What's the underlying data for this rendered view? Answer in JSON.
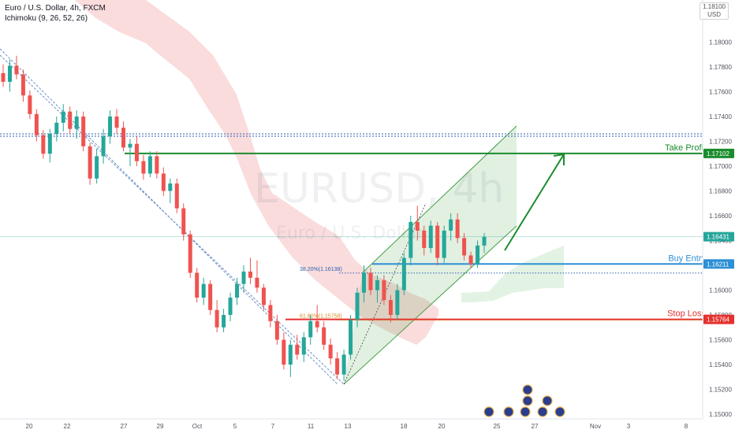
{
  "header": {
    "title": "Euro / U.S. Dollar, 4h, FXCM",
    "indicator": "Ichimoku (9, 26, 52, 26)"
  },
  "watermark": {
    "symbol": "EURUSD, 4h",
    "name": "Euro / U.S. Dollar"
  },
  "currency_box": {
    "top": "1.18100",
    "unit": "USD"
  },
  "colors": {
    "up": "#26a69a",
    "down": "#ef5350",
    "cloud": "#f9d6d7",
    "channel": "#43a047",
    "take_profit": "#1b8c2e",
    "buy": "#2d8fd5",
    "stop": "#e5312f"
  },
  "levels": {
    "take_profit": {
      "label": "Take Profit",
      "price": "1.17102",
      "value": 1.17102
    },
    "buy_entry": {
      "label": "Buy Entry",
      "price": "1.16211",
      "value": 1.16211
    },
    "stop_loss": {
      "label": "Stop Loss",
      "price": "1.15764",
      "value": 1.15764
    },
    "current": {
      "price": "1.16431",
      "value": 1.16431
    }
  },
  "fib": [
    {
      "label": "38.20%(1.16138)",
      "value": 1.16138
    },
    {
      "label": "61.80%(1.15758)",
      "value": 1.15758
    }
  ],
  "chart_data": {
    "type": "candlestick",
    "title": "Euro / U.S. Dollar, 4h, FXCM",
    "ylim": [
      1.15,
      1.182
    ],
    "y_ticks": [
      {
        "value": 1.18,
        "label": "1.18000"
      },
      {
        "value": 1.178,
        "label": "1.17800"
      },
      {
        "value": 1.176,
        "label": "1.17600"
      },
      {
        "value": 1.174,
        "label": "1.17400"
      },
      {
        "value": 1.172,
        "label": "1.17200"
      },
      {
        "value": 1.17,
        "label": "1.17000"
      },
      {
        "value": 1.168,
        "label": "1.16800"
      },
      {
        "value": 1.166,
        "label": "1.16600"
      },
      {
        "value": 1.164,
        "label": "1.16400"
      },
      {
        "value": 1.162,
        "label": "1.16200"
      },
      {
        "value": 1.16,
        "label": "1.16000"
      },
      {
        "value": 1.158,
        "label": "1.15800"
      },
      {
        "value": 1.156,
        "label": "1.15600"
      },
      {
        "value": 1.154,
        "label": "1.15400"
      },
      {
        "value": 1.152,
        "label": "1.15200"
      },
      {
        "value": 1.15,
        "label": "1.15000"
      }
    ],
    "x_ticks": [
      "20",
      "22",
      "27",
      "29",
      "Oct",
      "5",
      "7",
      "11",
      "13",
      "18",
      "20",
      "25",
      "27",
      "Nov",
      "3",
      "8"
    ],
    "candles": [
      [
        1.1775,
        1.1782,
        1.1764,
        1.1768
      ],
      [
        1.1768,
        1.1786,
        1.176,
        1.1781
      ],
      [
        1.1781,
        1.1789,
        1.177,
        1.1774
      ],
      [
        1.1774,
        1.1778,
        1.1752,
        1.1757
      ],
      [
        1.1757,
        1.1761,
        1.1738,
        1.1742
      ],
      [
        1.1742,
        1.1746,
        1.172,
        1.1725
      ],
      [
        1.1725,
        1.1729,
        1.1706,
        1.171
      ],
      [
        1.171,
        1.173,
        1.1703,
        1.1726
      ],
      [
        1.1726,
        1.174,
        1.172,
        1.1735
      ],
      [
        1.1735,
        1.175,
        1.1728,
        1.1744
      ],
      [
        1.1744,
        1.1748,
        1.1726,
        1.173
      ],
      [
        1.173,
        1.1745,
        1.1722,
        1.174
      ],
      [
        1.174,
        1.1744,
        1.1712,
        1.1716
      ],
      [
        1.1716,
        1.1719,
        1.1685,
        1.169
      ],
      [
        1.169,
        1.1714,
        1.1686,
        1.1708
      ],
      [
        1.1708,
        1.173,
        1.1702,
        1.1724
      ],
      [
        1.1724,
        1.1745,
        1.1718,
        1.174
      ],
      [
        1.174,
        1.1746,
        1.1726,
        1.1731
      ],
      [
        1.1731,
        1.1736,
        1.1712,
        1.1715
      ],
      [
        1.1715,
        1.1722,
        1.17,
        1.1718
      ],
      [
        1.1718,
        1.1724,
        1.17,
        1.1704
      ],
      [
        1.1704,
        1.1709,
        1.1689,
        1.1694
      ],
      [
        1.1694,
        1.1712,
        1.1691,
        1.1708
      ],
      [
        1.1708,
        1.1712,
        1.169,
        1.1694
      ],
      [
        1.1694,
        1.1699,
        1.1676,
        1.168
      ],
      [
        1.168,
        1.169,
        1.167,
        1.1686
      ],
      [
        1.1686,
        1.169,
        1.1662,
        1.1666
      ],
      [
        1.1666,
        1.167,
        1.164,
        1.1645
      ],
      [
        1.1645,
        1.1648,
        1.161,
        1.1614
      ],
      [
        1.1614,
        1.1618,
        1.159,
        1.1594
      ],
      [
        1.1594,
        1.161,
        1.1588,
        1.1605
      ],
      [
        1.1605,
        1.1608,
        1.158,
        1.1584
      ],
      [
        1.1584,
        1.1592,
        1.1566,
        1.157
      ],
      [
        1.157,
        1.1585,
        1.1566,
        1.158
      ],
      [
        1.158,
        1.1598,
        1.1575,
        1.1594
      ],
      [
        1.1594,
        1.161,
        1.1588,
        1.1605
      ],
      [
        1.1605,
        1.162,
        1.1598,
        1.1615
      ],
      [
        1.1615,
        1.1626,
        1.1605,
        1.161
      ],
      [
        1.161,
        1.1624,
        1.1598,
        1.1602
      ],
      [
        1.1602,
        1.1605,
        1.1584,
        1.1588
      ],
      [
        1.1588,
        1.1592,
        1.157,
        1.1575
      ],
      [
        1.1575,
        1.158,
        1.1556,
        1.156
      ],
      [
        1.156,
        1.1566,
        1.1536,
        1.154
      ],
      [
        1.154,
        1.156,
        1.153,
        1.1556
      ],
      [
        1.1556,
        1.1564,
        1.1544,
        1.1548
      ],
      [
        1.1548,
        1.1566,
        1.1542,
        1.1562
      ],
      [
        1.1562,
        1.158,
        1.1556,
        1.1575
      ],
      [
        1.1575,
        1.1588,
        1.1566,
        1.157
      ],
      [
        1.157,
        1.1575,
        1.1552,
        1.1556
      ],
      [
        1.1556,
        1.1561,
        1.154,
        1.1545
      ],
      [
        1.1545,
        1.155,
        1.1528,
        1.1532
      ],
      [
        1.1532,
        1.1552,
        1.1527,
        1.1548
      ],
      [
        1.1548,
        1.158,
        1.1544,
        1.1576
      ],
      [
        1.1576,
        1.1602,
        1.157,
        1.1598
      ],
      [
        1.1598,
        1.162,
        1.159,
        1.1614
      ],
      [
        1.1614,
        1.1618,
        1.1596,
        1.16
      ],
      [
        1.16,
        1.1612,
        1.159,
        1.1608
      ],
      [
        1.1608,
        1.1612,
        1.1588,
        1.1592
      ],
      [
        1.1592,
        1.1596,
        1.1574,
        1.158
      ],
      [
        1.158,
        1.1605,
        1.1576,
        1.16
      ],
      [
        1.16,
        1.163,
        1.1596,
        1.1626
      ],
      [
        1.1626,
        1.166,
        1.162,
        1.1655
      ],
      [
        1.1655,
        1.1668,
        1.164,
        1.1648
      ],
      [
        1.1648,
        1.1652,
        1.1628,
        1.1634
      ],
      [
        1.1634,
        1.1656,
        1.163,
        1.1652
      ],
      [
        1.1652,
        1.1655,
        1.162,
        1.1626
      ],
      [
        1.1626,
        1.1652,
        1.1622,
        1.1648
      ],
      [
        1.1648,
        1.1662,
        1.164,
        1.1657
      ],
      [
        1.1657,
        1.1662,
        1.1638,
        1.1642
      ],
      [
        1.1642,
        1.1646,
        1.1624,
        1.1628
      ],
      [
        1.1628,
        1.1631,
        1.1618,
        1.1621
      ],
      [
        1.1621,
        1.164,
        1.1618,
        1.1636
      ],
      [
        1.1636,
        1.1646,
        1.163,
        1.1643
      ]
    ]
  }
}
